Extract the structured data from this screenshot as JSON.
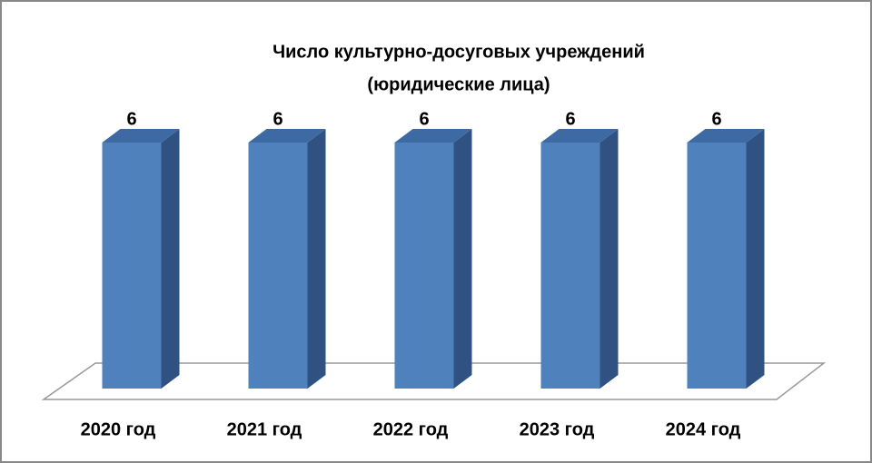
{
  "chart_data": {
    "type": "bar3d",
    "title": "Число культурно-досуговых учреждений",
    "subtitle": "(юридические лица)",
    "categories": [
      "2020 год",
      "2021 год",
      "2022 год",
      "2023 год",
      "2024 год"
    ],
    "values": [
      6,
      6,
      6,
      6,
      6
    ],
    "color": "#4f81bd"
  }
}
